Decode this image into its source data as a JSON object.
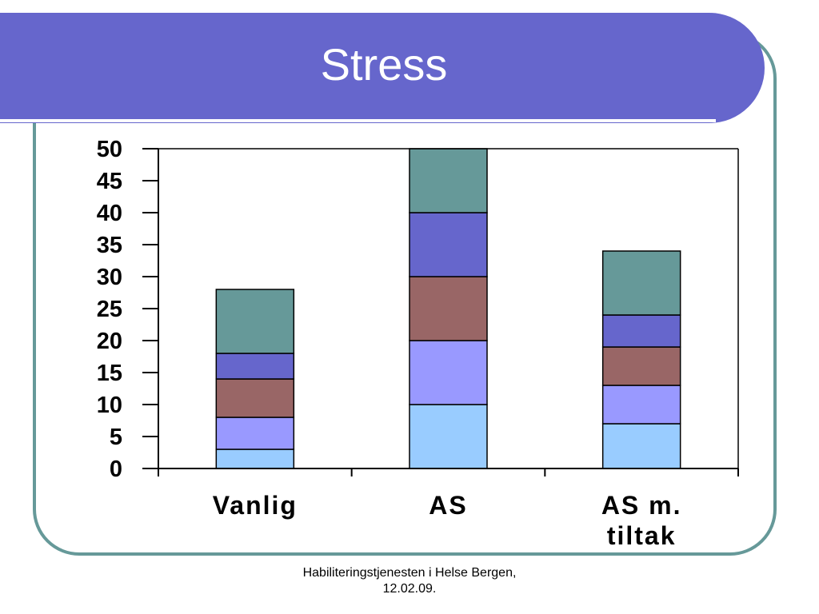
{
  "slide": {
    "title": "Stress",
    "footer_line1": "Habiliteringstjenesten i Helse Bergen,",
    "footer_line2": "12.02.09."
  },
  "colors": {
    "title_bar": "#6666cc",
    "frame": "#669999",
    "segments": [
      "#99ccff",
      "#9999ff",
      "#996666",
      "#6666cc",
      "#669999"
    ]
  },
  "chart_data": {
    "type": "bar",
    "stacked": true,
    "title": "",
    "xlabel": "",
    "ylabel": "",
    "categories": [
      "Vanlig",
      "AS",
      "AS m. tiltak"
    ],
    "category_lines": [
      [
        "Vanlig"
      ],
      [
        "AS"
      ],
      [
        "AS m.",
        "tiltak"
      ]
    ],
    "ylim": [
      0,
      50
    ],
    "yticks": [
      0,
      5,
      10,
      15,
      20,
      25,
      30,
      35,
      40,
      45,
      50
    ],
    "legend": "none",
    "grid": false,
    "series": [
      {
        "values": [
          3,
          10,
          7
        ]
      },
      {
        "values": [
          5,
          10,
          6
        ]
      },
      {
        "values": [
          6,
          10,
          6
        ]
      },
      {
        "values": [
          4,
          10,
          5
        ]
      },
      {
        "values": [
          10,
          10,
          10
        ]
      }
    ]
  }
}
